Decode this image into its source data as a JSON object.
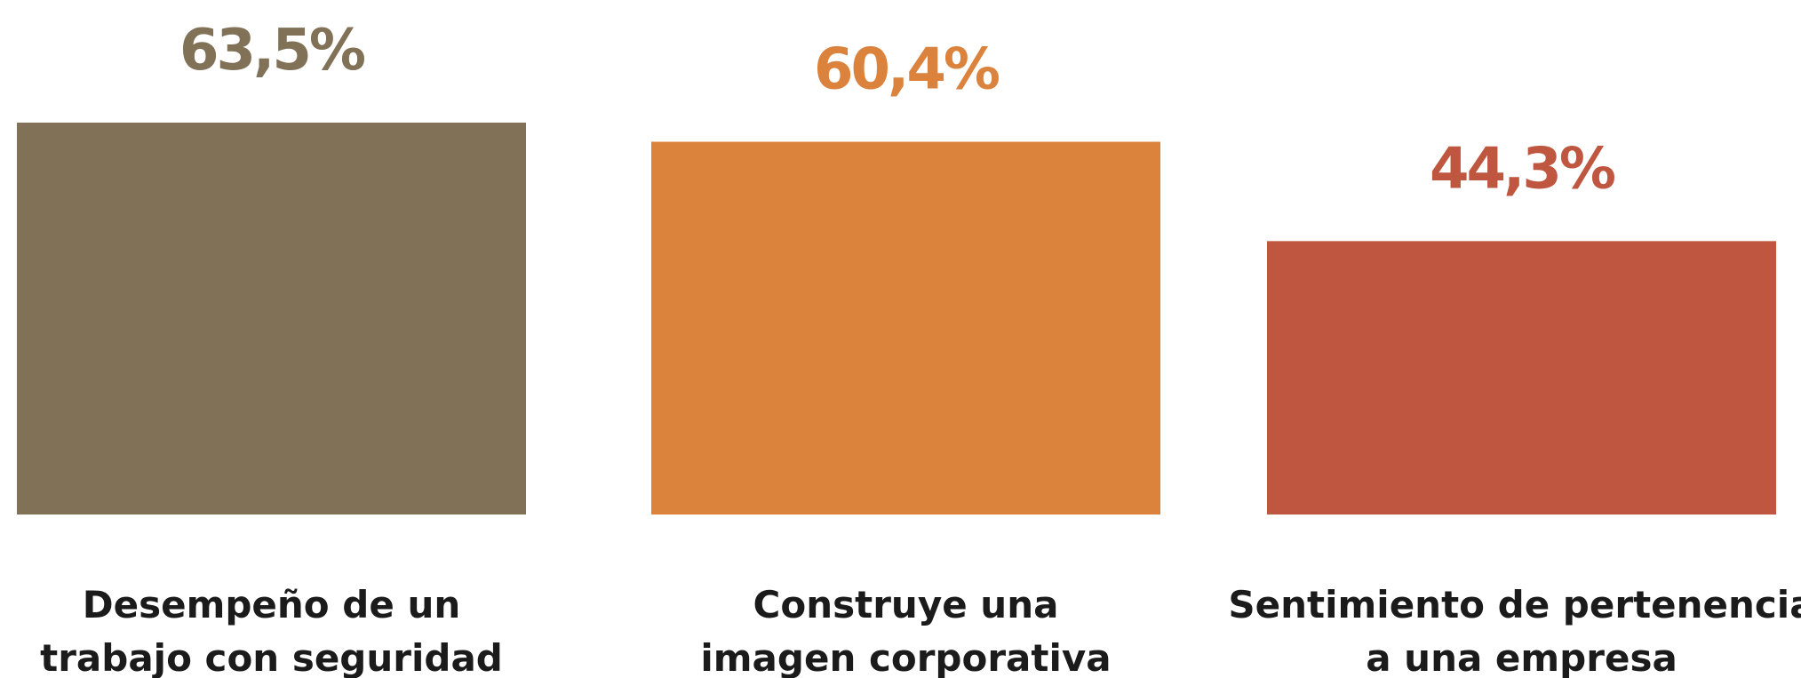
{
  "chart_data": {
    "type": "bar",
    "categories": [
      [
        "Desempeño de un",
        "trabajo con seguridad"
      ],
      [
        "Construye una",
        "imagen corporativa"
      ],
      [
        "Sentimiento de pertenencia",
        "a una empresa"
      ]
    ],
    "values": [
      63.5,
      60.4,
      44.3
    ],
    "value_labels": [
      "63,5%",
      "60,4%",
      "44,3%"
    ],
    "colors": [
      "#807157",
      "#db823d",
      "#bf5640"
    ],
    "grid": false,
    "legend": "none"
  }
}
